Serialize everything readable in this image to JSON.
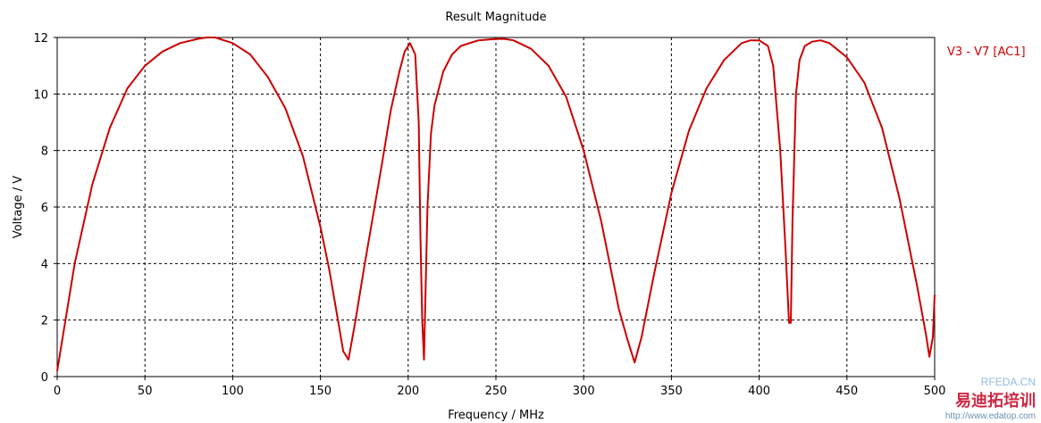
{
  "chart_data": {
    "type": "line",
    "title": "Result Magnitude",
    "xlabel": "Frequency / MHz",
    "ylabel": "Voltage / V",
    "xlim": [
      0,
      500
    ],
    "ylim": [
      0,
      12
    ],
    "x_ticks": [
      0,
      50,
      100,
      150,
      200,
      250,
      300,
      350,
      400,
      450,
      500
    ],
    "y_ticks": [
      0,
      2,
      4,
      6,
      8,
      10,
      12
    ],
    "grid": true,
    "legend_position": "right",
    "series": [
      {
        "name": "V3 - V7 [AC1]",
        "color": "#cc0000",
        "x": [
          0,
          10,
          20,
          30,
          40,
          50,
          60,
          70,
          80,
          85,
          90,
          100,
          110,
          120,
          130,
          140,
          150,
          155,
          160,
          163,
          166,
          170,
          175,
          180,
          185,
          190,
          195,
          198,
          201,
          204,
          206,
          207,
          208,
          209,
          211,
          213,
          215,
          220,
          225,
          230,
          240,
          250,
          255,
          260,
          270,
          280,
          290,
          300,
          310,
          320,
          325,
          329,
          333,
          340,
          350,
          360,
          370,
          380,
          390,
          395,
          400,
          405,
          408,
          412,
          415,
          417,
          418,
          419,
          421,
          423,
          426,
          430,
          435,
          440,
          450,
          460,
          470,
          480,
          490,
          495,
          497,
          499,
          500
        ],
        "y": [
          0.2,
          4.0,
          6.8,
          8.8,
          10.2,
          11.0,
          11.5,
          11.8,
          11.95,
          12.0,
          12.0,
          11.8,
          11.4,
          10.6,
          9.5,
          7.8,
          5.3,
          3.8,
          2.0,
          0.9,
          0.6,
          2.0,
          3.9,
          5.7,
          7.5,
          9.4,
          10.8,
          11.5,
          11.8,
          11.4,
          9.0,
          5.0,
          2.0,
          0.6,
          6.0,
          8.6,
          9.6,
          10.8,
          11.4,
          11.7,
          11.9,
          11.95,
          11.95,
          11.9,
          11.6,
          11.0,
          9.9,
          8.0,
          5.5,
          2.4,
          1.3,
          0.5,
          1.4,
          3.6,
          6.5,
          8.7,
          10.2,
          11.2,
          11.8,
          11.9,
          11.9,
          11.7,
          11.0,
          8.0,
          4.5,
          1.9,
          1.9,
          5.5,
          10.0,
          11.2,
          11.7,
          11.85,
          11.9,
          11.8,
          11.3,
          10.4,
          8.8,
          6.3,
          3.2,
          1.5,
          0.7,
          1.4,
          2.9
        ]
      }
    ]
  },
  "watermark": {
    "site": "http://www.edatop.com",
    "brand": "RFEDA.CN",
    "cn": "易迪拓培训"
  }
}
